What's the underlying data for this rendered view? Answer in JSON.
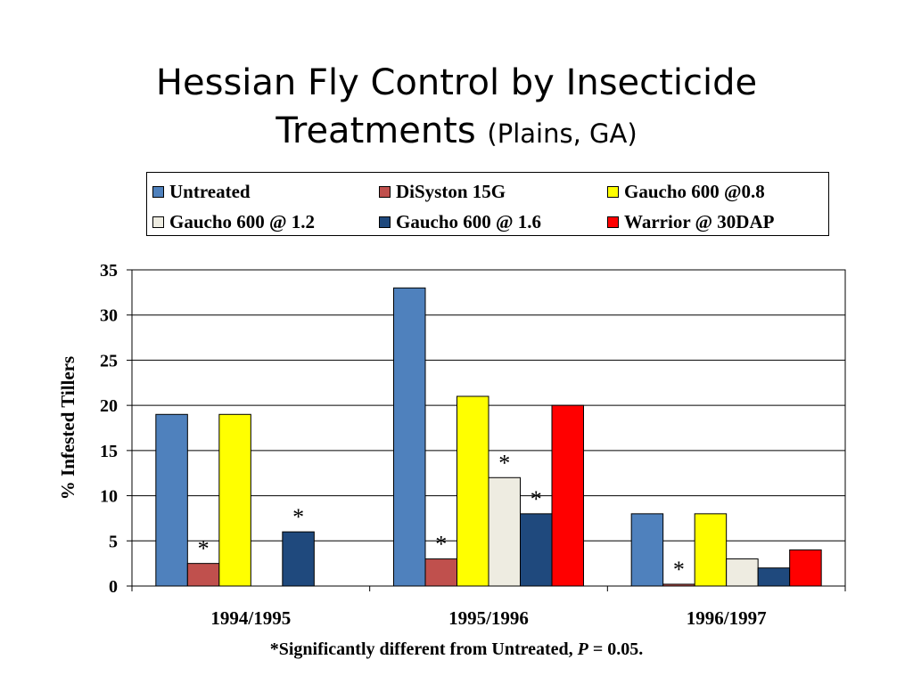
{
  "slide": {
    "title_main": "Hessian Fly Control by Insecticide",
    "title_line2": "Treatments",
    "title_sub": "(Plains, GA)"
  },
  "legend": {
    "items": [
      {
        "label": "Untreated"
      },
      {
        "label": "DiSyston 15G"
      },
      {
        "label": "Gaucho 600 @0.8"
      },
      {
        "label": "Gaucho 600 @ 1.2"
      },
      {
        "label": "Gaucho 600 @ 1.6"
      },
      {
        "label": "Warrior @ 30DAP"
      }
    ]
  },
  "footnote": {
    "prefix": "*Significantly different from Untreated, ",
    "p_var": "P",
    "suffix": " = 0.05."
  },
  "chart_data": {
    "type": "bar",
    "title": "Hessian Fly Control by Insecticide Treatments (Plains, GA)",
    "categories": [
      "1994/1995",
      "1995/1996",
      "1996/1997"
    ],
    "ylabel": "% Infested Tillers",
    "xlabel": "",
    "ylim": [
      0,
      35
    ],
    "yticks": [
      0,
      5,
      10,
      15,
      20,
      25,
      30,
      35
    ],
    "grid": true,
    "legend_position": "top",
    "series": [
      {
        "name": "Untreated",
        "color": "#4F81BD",
        "values": [
          19,
          33,
          8
        ],
        "significant": [
          false,
          false,
          false
        ]
      },
      {
        "name": "DiSyston 15G",
        "color": "#C0504D",
        "values": [
          2.5,
          3,
          0.2
        ],
        "significant": [
          true,
          true,
          true
        ]
      },
      {
        "name": "Gaucho 600 @0.8",
        "color": "#FFFF00",
        "values": [
          19,
          21,
          8
        ],
        "significant": [
          false,
          false,
          false
        ]
      },
      {
        "name": "Gaucho 600 @ 1.2",
        "color": "#EEECE1",
        "values": [
          null,
          12,
          3
        ],
        "significant": [
          false,
          true,
          false
        ]
      },
      {
        "name": "Gaucho 600 @ 1.6",
        "color": "#1F497D",
        "values": [
          6,
          8,
          2
        ],
        "significant": [
          true,
          true,
          false
        ]
      },
      {
        "name": "Warrior @ 30DAP",
        "color": "#FF0000",
        "values": [
          null,
          20,
          4
        ],
        "significant": [
          false,
          false,
          false
        ]
      }
    ],
    "significance_marker": "*"
  }
}
